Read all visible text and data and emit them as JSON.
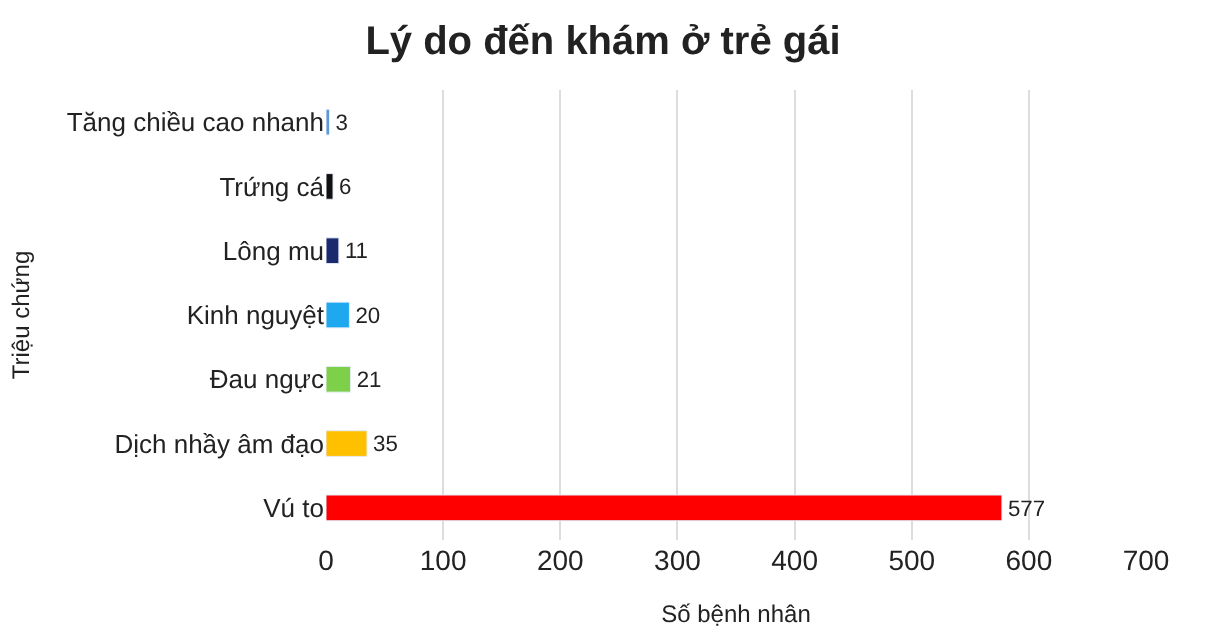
{
  "chart_data": {
    "type": "bar",
    "orientation": "horizontal",
    "title": "Lý do đến khám ở trẻ gái",
    "xlabel": "Số bệnh nhân",
    "ylabel": "Triệu chứng",
    "categories": [
      "Tăng chiều cao nhanh",
      "Trứng cá",
      "Lông mu",
      "Kinh nguyệt",
      "Đau ngực",
      "Dịch nhầy âm đạo",
      "Vú to"
    ],
    "values": [
      3,
      6,
      11,
      20,
      21,
      35,
      577
    ],
    "colors": [
      "#5b9bd5",
      "#111111",
      "#1a2a6c",
      "#1ea8f0",
      "#7ed04b",
      "#ffc000",
      "#ff0000"
    ],
    "xlim": [
      0,
      700
    ],
    "xticks": [
      0,
      100,
      200,
      300,
      400,
      500,
      600,
      700
    ],
    "grid": "x",
    "data_labels": true
  }
}
